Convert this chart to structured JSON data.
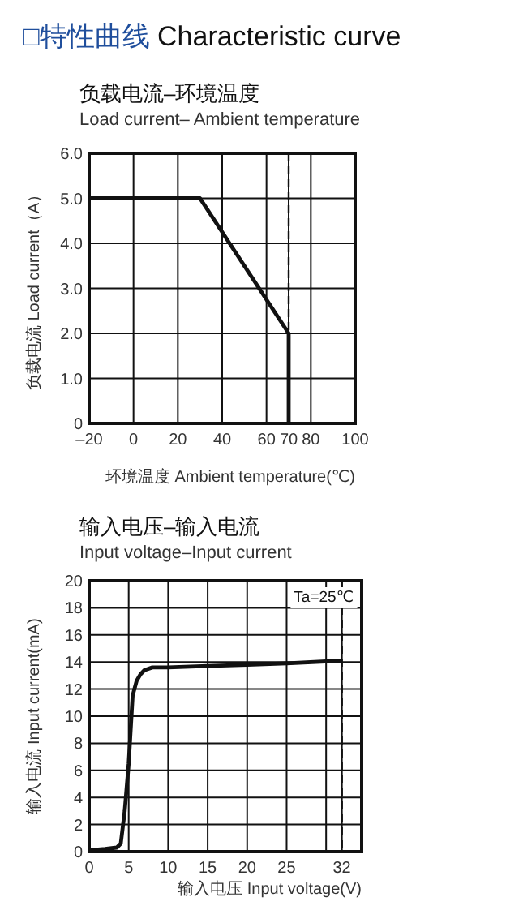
{
  "chart_data": [
    {
      "type": "line",
      "title": "负载电流–环境温度",
      "subtitle": "Load current– Ambient temperature",
      "xlabel": "环境温度 Ambient temperature(℃)",
      "ylabel": "负载电流 Load current（A）",
      "annotations": [
        "□特性曲线 Characteristic curve"
      ],
      "x": [
        -20,
        30,
        70,
        70
      ],
      "series": [
        {
          "color": "#111111",
          "values": [
            5,
            5,
            2,
            0
          ]
        }
      ],
      "xlim": [
        -20,
        100
      ],
      "xticks": [
        {
          "value": -20,
          "label": "–20"
        },
        0,
        20,
        40,
        60,
        70,
        80,
        100
      ],
      "ylim": [
        0,
        6
      ],
      "yticks": [
        0,
        {
          "value": 1,
          "label": "1.0"
        },
        {
          "value": 2,
          "label": "2.0"
        },
        {
          "value": 3,
          "label": "3.0"
        },
        {
          "value": 4,
          "label": "4.0"
        },
        {
          "value": 5,
          "label": "5.0"
        },
        {
          "value": 6,
          "label": "6.0"
        }
      ],
      "ref_lines": [
        {
          "axis": "x",
          "value": 70,
          "color": "#111111",
          "line_style": "dashed"
        }
      ],
      "grid": true,
      "line_style": "solid",
      "marker": "none"
    },
    {
      "type": "line",
      "title": "输入电压–输入电流",
      "subtitle": "Input voltage–Input current",
      "xlabel": "输入电压 Input voltage(V)",
      "ylabel": "输入电流 Input current(mA)",
      "annotations": [
        "Ta=25℃"
      ],
      "x": [
        0,
        2,
        3.5,
        4,
        4.5,
        5,
        5.5,
        6,
        6.5,
        7,
        8,
        9,
        10,
        15,
        20,
        25,
        32
      ],
      "series": [
        {
          "color": "#111111",
          "values": [
            0.1,
            0.2,
            0.3,
            0.6,
            3,
            6.5,
            11.5,
            12.6,
            13.1,
            13.4,
            13.6,
            13.6,
            13.6,
            13.7,
            13.8,
            13.9,
            14.1
          ]
        }
      ],
      "xlim": [
        0,
        34.5
      ],
      "xticks": [
        0,
        5,
        10,
        15,
        20,
        25,
        {
          "value": 30,
          "label": null
        },
        32
      ],
      "ylim": [
        0,
        20
      ],
      "yticks": [
        0,
        2,
        4,
        6,
        8,
        10,
        12,
        14,
        16,
        18,
        20
      ],
      "ref_lines": [
        {
          "axis": "x",
          "value": 32,
          "color": "#111111",
          "line_style": "dashed"
        }
      ],
      "grid": true,
      "line_style": "solid",
      "marker": "none"
    }
  ]
}
